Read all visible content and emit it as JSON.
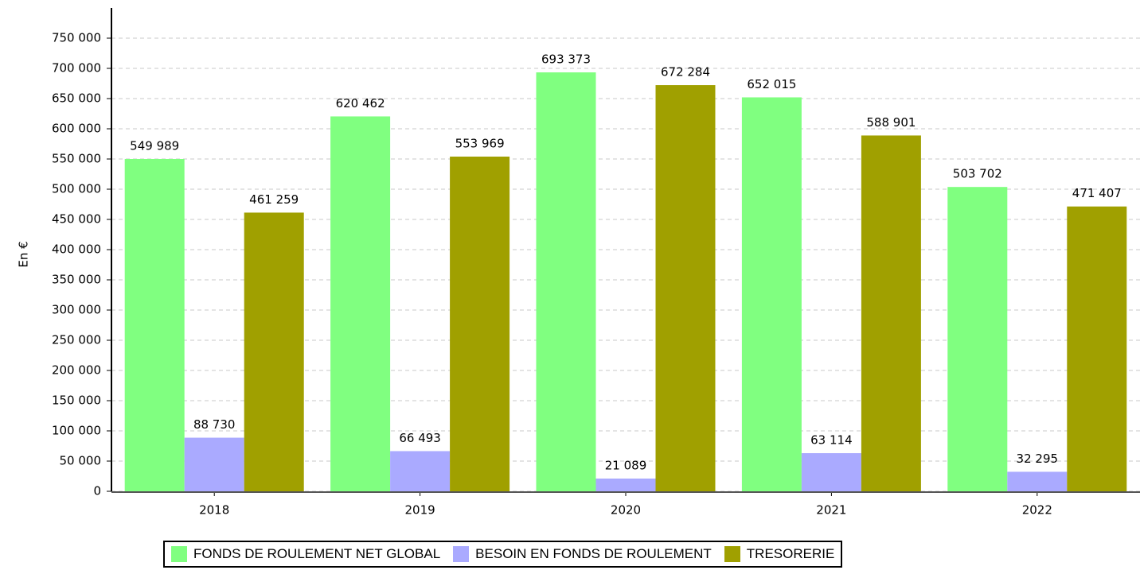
{
  "chart_data": {
    "type": "bar",
    "y_label": "En €",
    "categories": [
      "2018",
      "2019",
      "2020",
      "2021",
      "2022"
    ],
    "series": [
      {
        "name": "FONDS DE ROULEMENT NET GLOBAL",
        "color": "#80ff80",
        "values": [
          549989,
          620462,
          693373,
          652015,
          503702
        ],
        "value_labels": [
          "549 989",
          "620 462",
          "693 373",
          "652 015",
          "503 702"
        ]
      },
      {
        "name": "BESOIN EN FONDS DE ROULEMENT",
        "color": "#aaaaff",
        "values": [
          88730,
          66493,
          21089,
          63114,
          32295
        ],
        "value_labels": [
          "88 730",
          "66 493",
          "21 089",
          "63 114",
          "32 295"
        ]
      },
      {
        "name": "TRESORERIE",
        "color": "#a0a000",
        "values": [
          461259,
          553969,
          672284,
          588901,
          471407
        ],
        "value_labels": [
          "461 259",
          "553 969",
          "672 284",
          "588 901",
          "471 407"
        ]
      }
    ],
    "ylim": [
      0,
      800000
    ],
    "yticks": [
      {
        "value": 0,
        "label": "0"
      },
      {
        "value": 50000,
        "label": "50 000"
      },
      {
        "value": 100000,
        "label": "100 000"
      },
      {
        "value": 150000,
        "label": "150 000"
      },
      {
        "value": 200000,
        "label": "200 000"
      },
      {
        "value": 250000,
        "label": "250 000"
      },
      {
        "value": 300000,
        "label": "300 000"
      },
      {
        "value": 350000,
        "label": "350 000"
      },
      {
        "value": 400000,
        "label": "400 000"
      },
      {
        "value": 450000,
        "label": "450 000"
      },
      {
        "value": 500000,
        "label": "500 000"
      },
      {
        "value": 550000,
        "label": "550 000"
      },
      {
        "value": 600000,
        "label": "600 000"
      },
      {
        "value": 650000,
        "label": "650 000"
      },
      {
        "value": 700000,
        "label": "700 000"
      },
      {
        "value": 750000,
        "label": "750 000"
      }
    ],
    "grid": true
  }
}
